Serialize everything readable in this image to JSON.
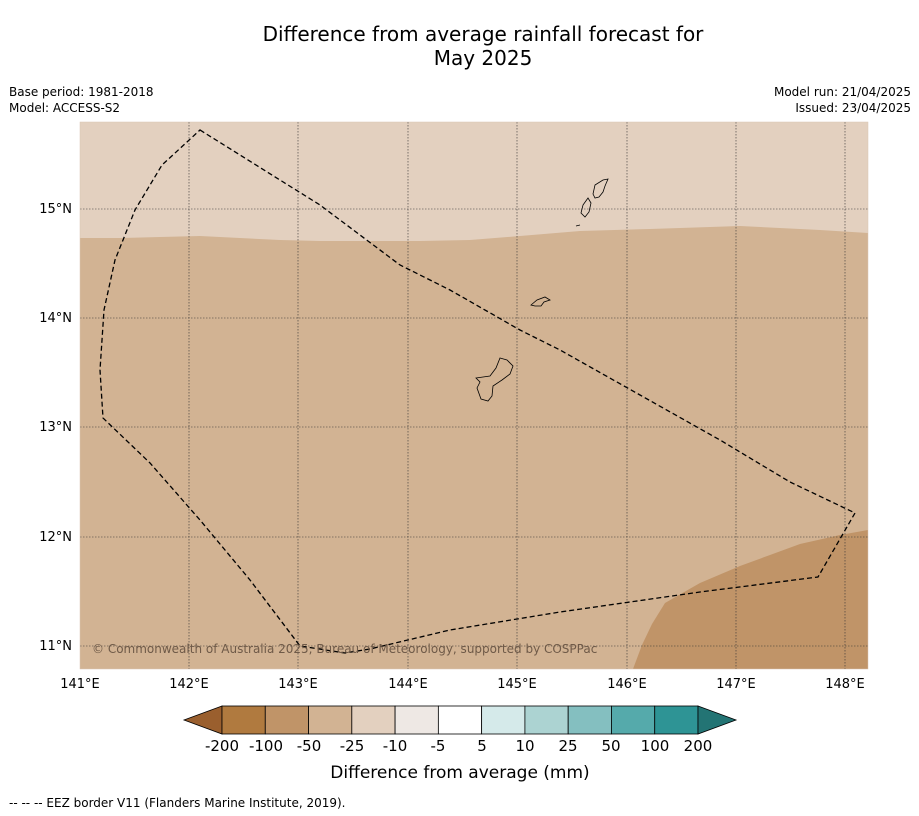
{
  "title": {
    "line1": "Difference from average rainfall forecast for",
    "line2": "May 2025"
  },
  "info": {
    "base_period": "Base period: 1981-2018",
    "model": "Model: ACCESS-S2",
    "model_run": "Model run: 21/04/2025",
    "issued": "Issued: 23/04/2025"
  },
  "map": {
    "lon_ticks": [
      "141°E",
      "142°E",
      "143°E",
      "144°E",
      "145°E",
      "146°E",
      "147°E",
      "148°E"
    ],
    "lat_ticks": [
      "15°N",
      "14°N",
      "13°N",
      "12°N",
      "11°N"
    ],
    "copyright": "© Commonwealth of Australia 2025, Bureau of Meteorology, supported by COSPPac",
    "colors": {
      "minus_10_to_minus_25": "#e3d0bf",
      "minus_25_to_minus_50": "#d2b393",
      "minus_50_to_minus_100": "#c09468"
    }
  },
  "colorbar": {
    "label": "Difference from average (mm)",
    "tick_labels": [
      "-200",
      "-100",
      "-50",
      "-25",
      "-10",
      "-5",
      "5",
      "10",
      "25",
      "50",
      "100",
      "200"
    ],
    "colors": [
      "#9a5f2e",
      "#b07a3f",
      "#c09468",
      "#d2b393",
      "#e3d0bf",
      "#eee8e4",
      "#ffffff",
      "#d5eaea",
      "#acd3d2",
      "#84bfc0",
      "#55aaab",
      "#2e9495",
      "#237474"
    ]
  },
  "footnote": "--  --  -- EEZ border V11 (Flanders Marine Institute, 2019)."
}
